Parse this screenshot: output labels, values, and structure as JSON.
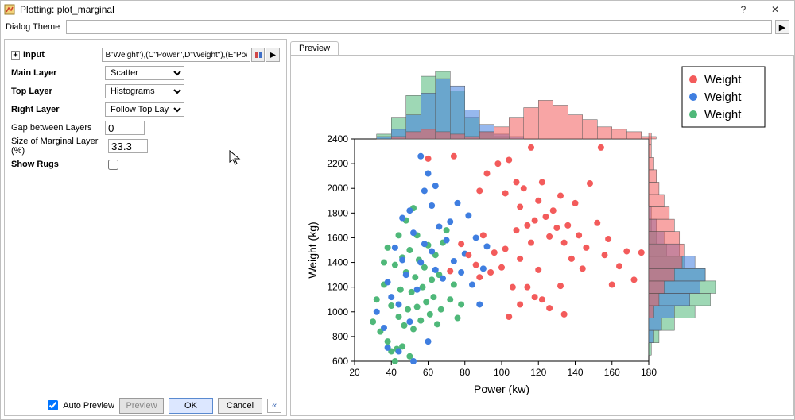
{
  "window": {
    "title": "Plotting: plot_marginal",
    "help_glyph": "?",
    "close_glyph": "✕"
  },
  "theme": {
    "label": "Dialog Theme",
    "value": "",
    "arrow_glyph": "▶"
  },
  "form": {
    "input": {
      "label": "Input",
      "value": "B\"Weight\"),(C\"Power\",D\"Weight\"),(E\"Power\",F\"Weight\")]"
    },
    "main_layer": {
      "label": "Main Layer",
      "value": "Scatter",
      "options": [
        "Scatter"
      ]
    },
    "top_layer": {
      "label": "Top Layer",
      "value": "Histograms",
      "options": [
        "Histograms"
      ]
    },
    "right_layer": {
      "label": "Right Layer",
      "value": "Follow Top Layer",
      "options": [
        "Follow Top Layer"
      ]
    },
    "gap": {
      "label": "Gap between Layers",
      "value": "0"
    },
    "marginal_size": {
      "label": "Size of Marginal Layer (%)",
      "value": "33.3"
    },
    "show_rugs": {
      "label": "Show Rugs",
      "checked": false
    }
  },
  "buttons": {
    "auto_preview": "Auto Preview",
    "auto_preview_checked": true,
    "preview": "Preview",
    "ok": "OK",
    "cancel": "Cancel",
    "collapse_glyph": "«"
  },
  "preview_tab": {
    "label": "Preview"
  },
  "chart": {
    "xlabel": "Power (kw)",
    "ylabel": "Weight (kg)",
    "xlim": [
      20,
      180
    ],
    "ylim": [
      600,
      2400
    ],
    "xticks": [
      20,
      40,
      60,
      80,
      100,
      120,
      140,
      160,
      180
    ],
    "yticks": [
      600,
      800,
      1000,
      1200,
      1400,
      1600,
      1800,
      2000,
      2200,
      2400
    ],
    "axis_fontsize": 14,
    "tick_fontsize": 12,
    "marker_radius": 4,
    "colors": {
      "red": "#f35b5b",
      "blue": "#3f7ee0",
      "green": "#4fb879"
    },
    "legend": {
      "items": [
        "Weight",
        "Weight",
        "Weight"
      ],
      "colors": [
        "#f35b5b",
        "#3f7ee0",
        "#4fb879"
      ]
    },
    "top_hist": {
      "bin_start": 24,
      "bin_width": 8,
      "max_count": 28,
      "red": [
        0,
        0,
        1,
        3,
        4,
        3,
        2,
        1,
        3,
        5,
        9,
        13,
        16,
        14,
        10,
        8,
        5,
        4,
        3,
        1
      ],
      "blue": [
        0,
        1,
        4,
        10,
        19,
        25,
        22,
        12,
        6,
        2,
        1,
        0,
        0,
        0,
        0,
        0,
        0,
        0,
        0,
        0
      ],
      "green": [
        0,
        2,
        9,
        18,
        26,
        28,
        20,
        9,
        3,
        1,
        0,
        0,
        0,
        0,
        0,
        0,
        0,
        0,
        0,
        0
      ]
    },
    "right_hist": {
      "bin_start": 650,
      "bin_width": 100,
      "max_count": 26,
      "red": [
        0,
        0,
        0,
        2,
        4,
        6,
        10,
        13,
        14,
        12,
        10,
        8,
        6,
        4,
        3,
        2,
        1,
        1
      ],
      "blue": [
        0,
        2,
        5,
        10,
        16,
        20,
        22,
        18,
        12,
        6,
        3,
        1,
        0,
        0,
        0,
        0,
        0,
        0
      ],
      "green": [
        1,
        4,
        10,
        18,
        24,
        26,
        22,
        14,
        7,
        3,
        1,
        0,
        0,
        0,
        0,
        0,
        0,
        0
      ]
    },
    "scatter": {
      "red": [
        [
          60,
          2240
        ],
        [
          74,
          2260
        ],
        [
          88,
          1980
        ],
        [
          92,
          2120
        ],
        [
          98,
          2200
        ],
        [
          102,
          1960
        ],
        [
          104,
          2230
        ],
        [
          108,
          2050
        ],
        [
          110,
          1850
        ],
        [
          112,
          2000
        ],
        [
          114,
          1700
        ],
        [
          116,
          2330
        ],
        [
          118,
          1740
        ],
        [
          120,
          1900
        ],
        [
          122,
          2050
        ],
        [
          124,
          1770
        ],
        [
          126,
          1610
        ],
        [
          128,
          1820
        ],
        [
          130,
          1680
        ],
        [
          132,
          1940
        ],
        [
          134,
          1560
        ],
        [
          136,
          1700
        ],
        [
          138,
          1430
        ],
        [
          140,
          1880
        ],
        [
          142,
          1620
        ],
        [
          144,
          1350
        ],
        [
          146,
          1520
        ],
        [
          148,
          2040
        ],
        [
          152,
          1720
        ],
        [
          154,
          2330
        ],
        [
          156,
          1460
        ],
        [
          158,
          1590
        ],
        [
          160,
          1220
        ],
        [
          164,
          1370
        ],
        [
          168,
          1490
        ],
        [
          172,
          1260
        ],
        [
          176,
          1480
        ],
        [
          78,
          1550
        ],
        [
          82,
          1460
        ],
        [
          86,
          1380
        ],
        [
          90,
          1620
        ],
        [
          94,
          1320
        ],
        [
          96,
          1480
        ],
        [
          100,
          1360
        ],
        [
          106,
          1200
        ],
        [
          110,
          1060
        ],
        [
          118,
          1120
        ],
        [
          126,
          1030
        ],
        [
          134,
          980
        ],
        [
          88,
          1280
        ],
        [
          72,
          1330
        ],
        [
          110,
          1430
        ],
        [
          116,
          1560
        ],
        [
          132,
          1210
        ],
        [
          108,
          1660
        ],
        [
          102,
          1510
        ],
        [
          120,
          1340
        ],
        [
          114,
          1200
        ],
        [
          104,
          960
        ],
        [
          122,
          1100
        ]
      ],
      "blue": [
        [
          32,
          1000
        ],
        [
          36,
          870
        ],
        [
          38,
          1240
        ],
        [
          40,
          1120
        ],
        [
          42,
          1520
        ],
        [
          44,
          1060
        ],
        [
          46,
          1420
        ],
        [
          48,
          1300
        ],
        [
          50,
          920
        ],
        [
          52,
          1640
        ],
        [
          54,
          1180
        ],
        [
          56,
          1400
        ],
        [
          58,
          1550
        ],
        [
          60,
          760
        ],
        [
          62,
          1490
        ],
        [
          64,
          1340
        ],
        [
          64,
          2020
        ],
        [
          66,
          1690
        ],
        [
          68,
          1270
        ],
        [
          70,
          1580
        ],
        [
          72,
          1730
        ],
        [
          74,
          1410
        ],
        [
          76,
          1880
        ],
        [
          78,
          1320
        ],
        [
          80,
          1470
        ],
        [
          82,
          1780
        ],
        [
          84,
          1220
        ],
        [
          86,
          1600
        ],
        [
          88,
          1060
        ],
        [
          90,
          1350
        ],
        [
          92,
          1530
        ],
        [
          56,
          2260
        ],
        [
          58,
          1980
        ],
        [
          60,
          2120
        ],
        [
          62,
          1860
        ],
        [
          38,
          710
        ],
        [
          44,
          680
        ],
        [
          52,
          600
        ],
        [
          50,
          1820
        ],
        [
          46,
          1760
        ]
      ],
      "green": [
        [
          30,
          920
        ],
        [
          32,
          1100
        ],
        [
          34,
          840
        ],
        [
          36,
          1220
        ],
        [
          38,
          760
        ],
        [
          40,
          1050
        ],
        [
          42,
          1380
        ],
        [
          43,
          700
        ],
        [
          44,
          960
        ],
        [
          45,
          1180
        ],
        [
          46,
          1440
        ],
        [
          47,
          890
        ],
        [
          48,
          1320
        ],
        [
          49,
          1020
        ],
        [
          50,
          1500
        ],
        [
          51,
          1160
        ],
        [
          52,
          860
        ],
        [
          53,
          1280
        ],
        [
          54,
          1040
        ],
        [
          55,
          1420
        ],
        [
          56,
          930
        ],
        [
          57,
          1200
        ],
        [
          58,
          1360
        ],
        [
          59,
          1080
        ],
        [
          60,
          1540
        ],
        [
          61,
          980
        ],
        [
          62,
          1260
        ],
        [
          63,
          1120
        ],
        [
          64,
          1460
        ],
        [
          65,
          900
        ],
        [
          66,
          1300
        ],
        [
          67,
          1020
        ],
        [
          68,
          1560
        ],
        [
          70,
          1660
        ],
        [
          72,
          1100
        ],
        [
          74,
          1220
        ],
        [
          76,
          950
        ],
        [
          78,
          1060
        ],
        [
          36,
          1400
        ],
        [
          38,
          1520
        ],
        [
          40,
          680
        ],
        [
          42,
          600
        ],
        [
          44,
          1620
        ],
        [
          46,
          720
        ],
        [
          48,
          1740
        ],
        [
          50,
          640
        ],
        [
          52,
          1840
        ],
        [
          54,
          1620
        ]
      ]
    }
  }
}
